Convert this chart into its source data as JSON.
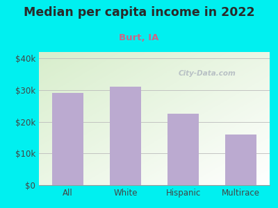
{
  "title": "Median per capita income in 2022",
  "subtitle": "Burt, IA",
  "categories": [
    "All",
    "White",
    "Hispanic",
    "Multirace"
  ],
  "values": [
    29000,
    31000,
    22500,
    16000
  ],
  "bar_color": "#bbaad0",
  "background_color": "#00f0f0",
  "plot_bg_color_topleft": "#d8eecc",
  "plot_bg_color_bottomright": "#ffffff",
  "title_color": "#2a2a2a",
  "subtitle_color": "#cc6688",
  "tick_color": "#444444",
  "ylim": [
    0,
    42000
  ],
  "yticks": [
    0,
    10000,
    20000,
    30000,
    40000
  ],
  "ytick_labels": [
    "$0",
    "$10k",
    "$20k",
    "$30k",
    "$40k"
  ],
  "title_fontsize": 12.5,
  "subtitle_fontsize": 9.5,
  "tick_fontsize": 8.5,
  "watermark_text": "City-Data.com"
}
